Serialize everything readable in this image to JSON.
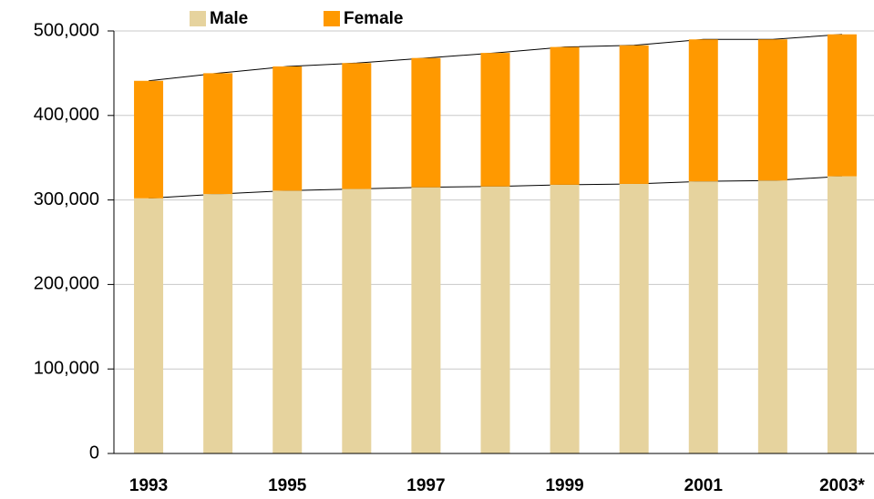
{
  "chart_data": {
    "type": "bar",
    "stacked": true,
    "categories": [
      "1993",
      null,
      "1995",
      null,
      "1997",
      null,
      "1999",
      null,
      "2001",
      null,
      "2003*"
    ],
    "series": [
      {
        "name": "Male",
        "color": "#e6d39e",
        "values": [
          302000,
          307000,
          311000,
          313000,
          315000,
          316000,
          318000,
          319000,
          322000,
          323000,
          328000
        ]
      },
      {
        "name": "Female",
        "color": "#ff9900",
        "values": [
          139000,
          143000,
          147000,
          149000,
          153000,
          158000,
          163000,
          164000,
          168000,
          167000,
          168000
        ]
      }
    ],
    "ylim": [
      0,
      500000
    ],
    "yticks": [
      0,
      {
        "value": 100000,
        "label": "100,000"
      },
      {
        "value": 200000,
        "label": "200,000"
      },
      {
        "value": 300000,
        "label": "300,000"
      },
      {
        "value": 400000,
        "label": "400,000"
      },
      {
        "value": 500000,
        "label": "500,000"
      }
    ],
    "grid": true,
    "legend": "top"
  }
}
